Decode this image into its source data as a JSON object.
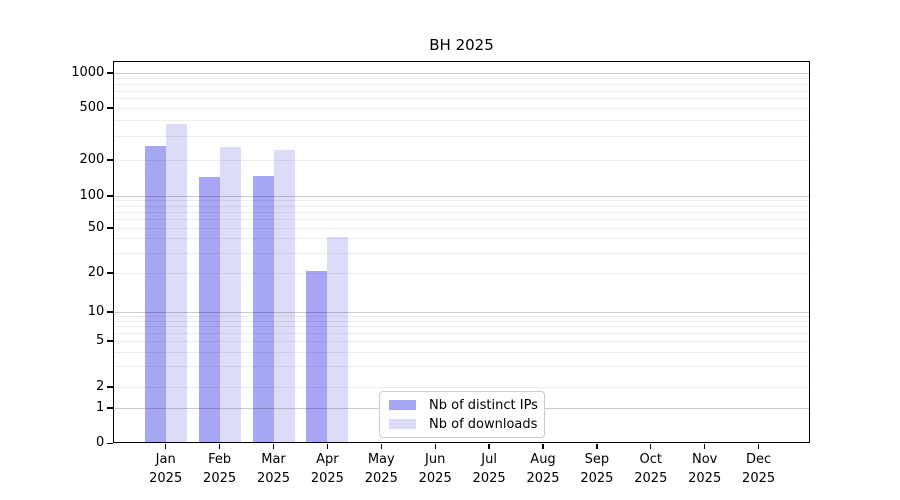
{
  "title": "BH 2025",
  "chart_data": {
    "type": "bar",
    "title": "BH 2025",
    "xlabel": "",
    "ylabel": "",
    "yscale": "symlog",
    "grid": "on",
    "legend_position": "lower-center",
    "categories": [
      {
        "month": "Jan",
        "year": "2025"
      },
      {
        "month": "Feb",
        "year": "2025"
      },
      {
        "month": "Mar",
        "year": "2025"
      },
      {
        "month": "Apr",
        "year": "2025"
      },
      {
        "month": "May",
        "year": "2025"
      },
      {
        "month": "Jun",
        "year": "2025"
      },
      {
        "month": "Jul",
        "year": "2025"
      },
      {
        "month": "Aug",
        "year": "2025"
      },
      {
        "month": "Sep",
        "year": "2025"
      },
      {
        "month": "Oct",
        "year": "2025"
      },
      {
        "month": "Nov",
        "year": "2025"
      },
      {
        "month": "Dec",
        "year": "2025"
      }
    ],
    "ytick_labels": [
      "0",
      "1",
      "2",
      "5",
      "10",
      "20",
      "50",
      "100",
      "200",
      "500",
      "1000"
    ],
    "ylim": [
      0,
      1000
    ],
    "series": [
      {
        "name": "Nb of distinct IPs",
        "color": "#a6a6f5",
        "values": [
          255,
          145,
          148,
          21,
          0,
          0,
          0,
          0,
          0,
          0,
          0,
          0
        ]
      },
      {
        "name": "Nb of downloads",
        "color": "#dcdcf9",
        "values": [
          380,
          250,
          240,
          42,
          0,
          0,
          0,
          0,
          0,
          0,
          0,
          0
        ]
      }
    ]
  }
}
